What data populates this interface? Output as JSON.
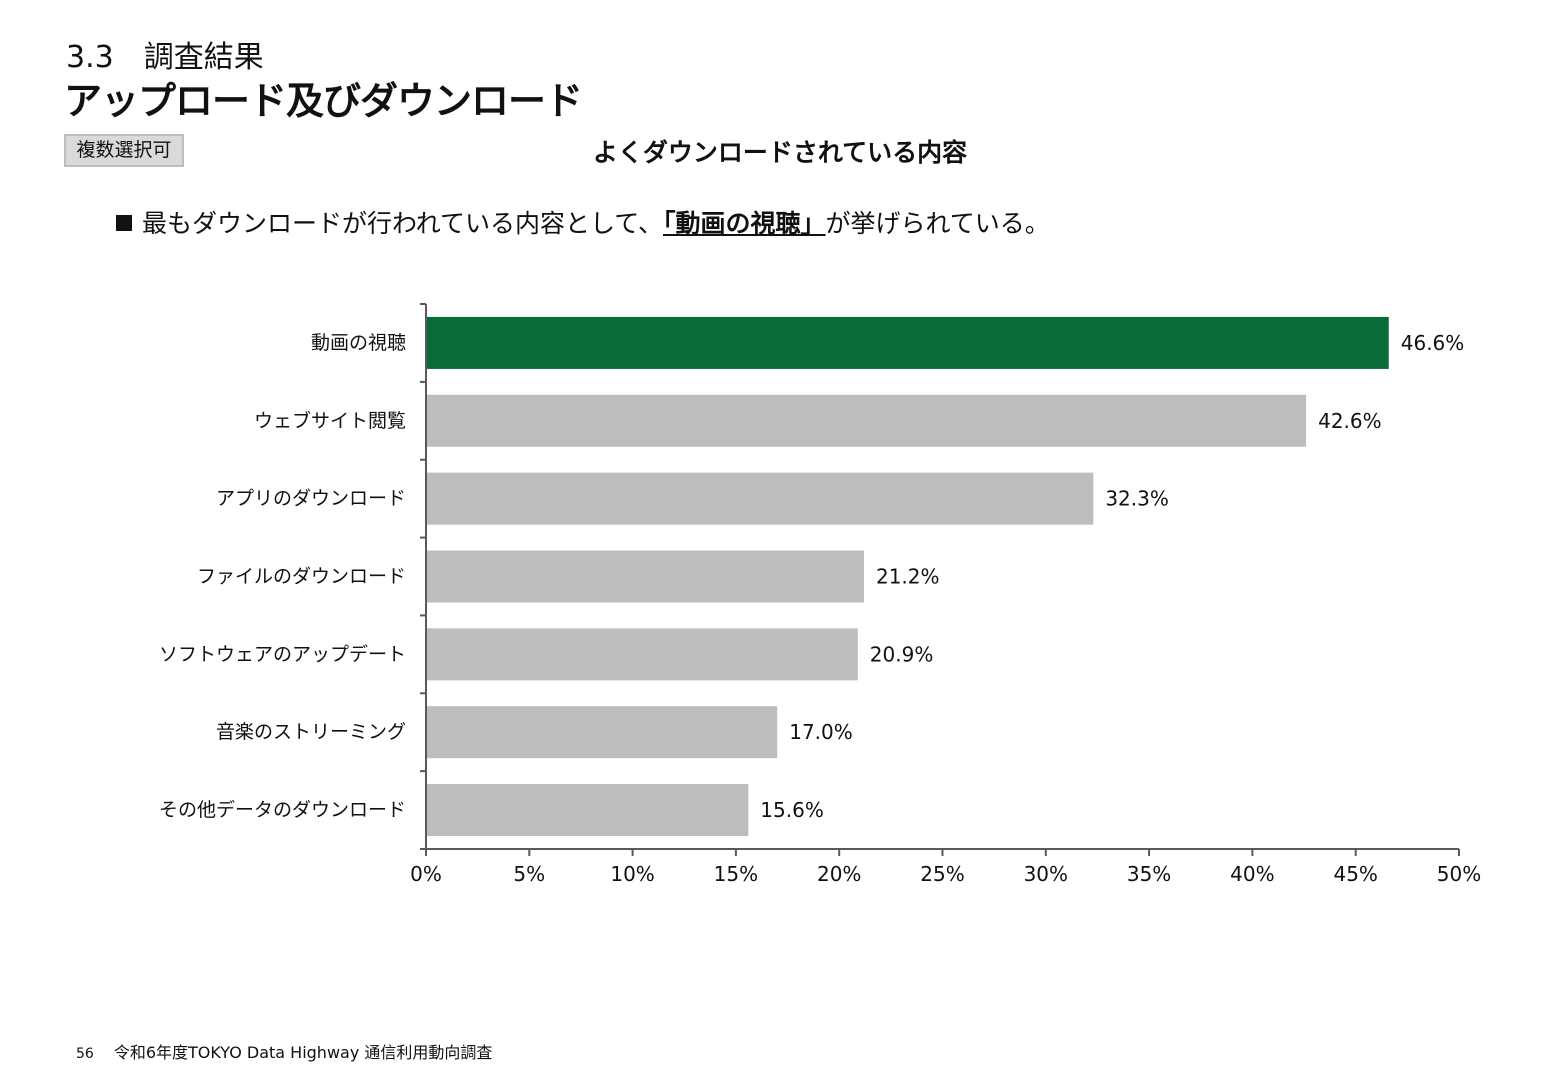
{
  "header": {
    "section_number": "3.3",
    "section_title": "調査結果",
    "page_title": "アップロード及びダウンロード",
    "badge": "複数選択可"
  },
  "summary": {
    "before": "最もダウンロードが行われている内容として、",
    "highlight": "「動画の視聴」",
    "after": "が挙げられている。"
  },
  "footer": {
    "page_number": "56",
    "source": "令和6年度TOKYO Data Highway 通信利用動向調査"
  },
  "colors": {
    "highlight_bar": "#076c3a",
    "default_bar": "#bcbdbc",
    "axis": "#595959"
  },
  "chart_data": {
    "type": "bar",
    "orientation": "horizontal",
    "title": "よくダウンロードされている内容",
    "categories": [
      "動画の視聴",
      "ウェブサイト閲覧",
      "アプリのダウンロード",
      "ファイルのダウンロード",
      "ソフトウェアのアップデート",
      "音楽のストリーミング",
      "その他データのダウンロード"
    ],
    "values": [
      46.6,
      42.6,
      32.3,
      21.2,
      20.9,
      17.0,
      15.6
    ],
    "value_labels": [
      "46.6%",
      "42.6%",
      "32.3%",
      "21.2%",
      "20.9%",
      "17.0%",
      "15.6%"
    ],
    "highlight_index": 0,
    "xlim": [
      0,
      50
    ],
    "xticks": [
      0,
      5,
      10,
      15,
      20,
      25,
      30,
      35,
      40,
      45,
      50
    ],
    "xtick_labels": [
      "0%",
      "5%",
      "10%",
      "15%",
      "20%",
      "25%",
      "30%",
      "35%",
      "40%",
      "45%",
      "50%"
    ],
    "grid": false,
    "legend": "none"
  }
}
